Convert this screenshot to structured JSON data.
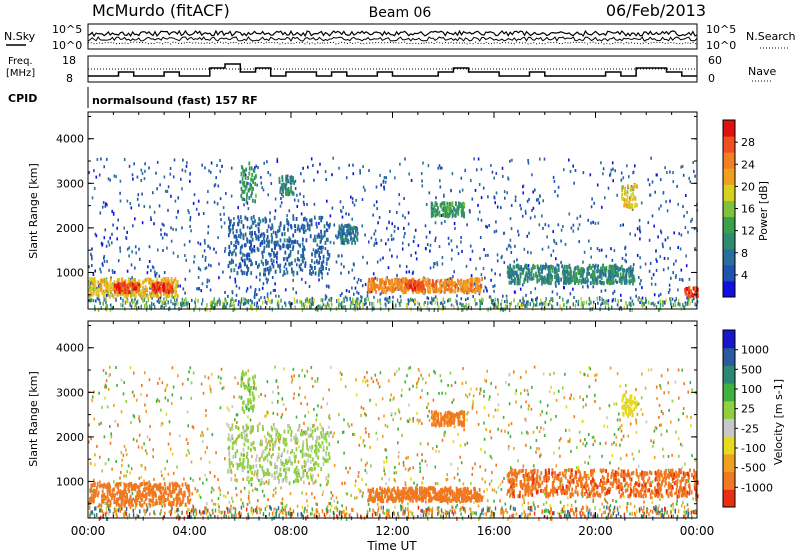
{
  "header": {
    "title": "McMurdo (fitACF)",
    "beam": "Beam 06",
    "date": "06/Feb/2013"
  },
  "strip_labels": {
    "nsky": "N.Sky",
    "nsky_hi": "10^5",
    "nsky_lo": "10^0",
    "nsearch": "N.Search",
    "nsearch_hi": "10^5",
    "nsearch_lo": "10^0",
    "freq": "Freq.",
    "freq_unit": "[MHz]",
    "freq_ticks": [
      "18",
      "8"
    ],
    "nave": "Nave",
    "nave_ticks": [
      "60",
      "0"
    ],
    "cpid": "CPID",
    "cpid_value": "normalsound (fast) 157 RF"
  },
  "chart_data": [
    {
      "type": "heatmap",
      "name": "power",
      "ylabel": "Slant Range [km]",
      "xlabel": "",
      "yticks": [
        "1000",
        "2000",
        "3000",
        "4000"
      ],
      "ylim": [
        180,
        4600
      ],
      "xlim": [
        0,
        24
      ],
      "colorbar": {
        "label": "Power [dB]",
        "ticks": [
          "4",
          "8",
          "12",
          "16",
          "20",
          "24",
          "28"
        ],
        "range": [
          0,
          32
        ],
        "colors": [
          "#1010e0",
          "#2050b0",
          "#2a6e9c",
          "#2e8a70",
          "#3aa04a",
          "#7cc23a",
          "#d8d020",
          "#f0a020",
          "#f08020",
          "#f05020",
          "#e01010"
        ]
      },
      "bands": [
        {
          "t0": 0.0,
          "t1": 3.5,
          "r0": 500,
          "r1": 900,
          "level": 20
        },
        {
          "t0": 1.0,
          "t1": 2.0,
          "r0": 600,
          "r1": 800,
          "level": 28
        },
        {
          "t0": 2.5,
          "t1": 3.3,
          "r0": 600,
          "r1": 800,
          "level": 28
        },
        {
          "t0": 6.0,
          "t1": 6.6,
          "r0": 2600,
          "r1": 3500,
          "level": 12
        },
        {
          "t0": 7.5,
          "t1": 8.1,
          "r0": 2800,
          "r1": 3200,
          "level": 10
        },
        {
          "t0": 5.5,
          "t1": 9.5,
          "r0": 1000,
          "r1": 2300,
          "level": 6
        },
        {
          "t0": 9.8,
          "t1": 10.6,
          "r0": 1700,
          "r1": 2100,
          "level": 8
        },
        {
          "t0": 11.0,
          "t1": 15.5,
          "r0": 600,
          "r1": 900,
          "level": 24
        },
        {
          "t0": 12.5,
          "t1": 13.2,
          "r0": 650,
          "r1": 850,
          "level": 28
        },
        {
          "t0": 13.5,
          "t1": 14.8,
          "r0": 2300,
          "r1": 2600,
          "level": 12
        },
        {
          "t0": 16.5,
          "t1": 21.5,
          "r0": 800,
          "r1": 1200,
          "level": 10
        },
        {
          "t0": 21.0,
          "t1": 21.6,
          "r0": 2500,
          "r1": 3000,
          "level": 20
        },
        {
          "t0": 23.5,
          "t1": 24.0,
          "r0": 500,
          "r1": 700,
          "level": 28
        }
      ]
    },
    {
      "type": "heatmap",
      "name": "velocity",
      "ylabel": "Slant Range [km]",
      "xlabel": "Time UT",
      "yticks": [
        "1000",
        "2000",
        "3000",
        "4000"
      ],
      "xticks": [
        "00:00",
        "04:00",
        "08:00",
        "12:00",
        "16:00",
        "20:00",
        "00:00"
      ],
      "ylim": [
        180,
        4600
      ],
      "xlim": [
        0,
        24
      ],
      "colorbar": {
        "label": "Velocity [m s-1]",
        "ticks": [
          "1000",
          "500",
          "100",
          "25",
          "-25",
          "-100",
          "-500",
          "-1000"
        ],
        "colors": [
          "#1818c8",
          "#2a5aa0",
          "#2c8870",
          "#40b040",
          "#8ed040",
          "#c8c8c8",
          "#e8d820",
          "#f0a020",
          "#f07820",
          "#e83010"
        ]
      },
      "bands": [
        {
          "t0": 0.0,
          "t1": 4.0,
          "r0": 500,
          "r1": 1000,
          "vel": -300
        },
        {
          "t0": 6.0,
          "t1": 6.6,
          "r0": 2600,
          "r1": 3500,
          "vel": 80
        },
        {
          "t0": 5.5,
          "t1": 9.5,
          "r0": 1000,
          "r1": 2300,
          "vel": 60
        },
        {
          "t0": 11.0,
          "t1": 15.5,
          "r0": 600,
          "r1": 900,
          "vel": -300
        },
        {
          "t0": 13.5,
          "t1": 14.8,
          "r0": 2300,
          "r1": 2600,
          "vel": -150
        },
        {
          "t0": 16.5,
          "t1": 24.0,
          "r0": 700,
          "r1": 1300,
          "vel": -400
        },
        {
          "t0": 21.0,
          "t1": 21.6,
          "r0": 2500,
          "r1": 3000,
          "vel": 10
        }
      ]
    }
  ]
}
